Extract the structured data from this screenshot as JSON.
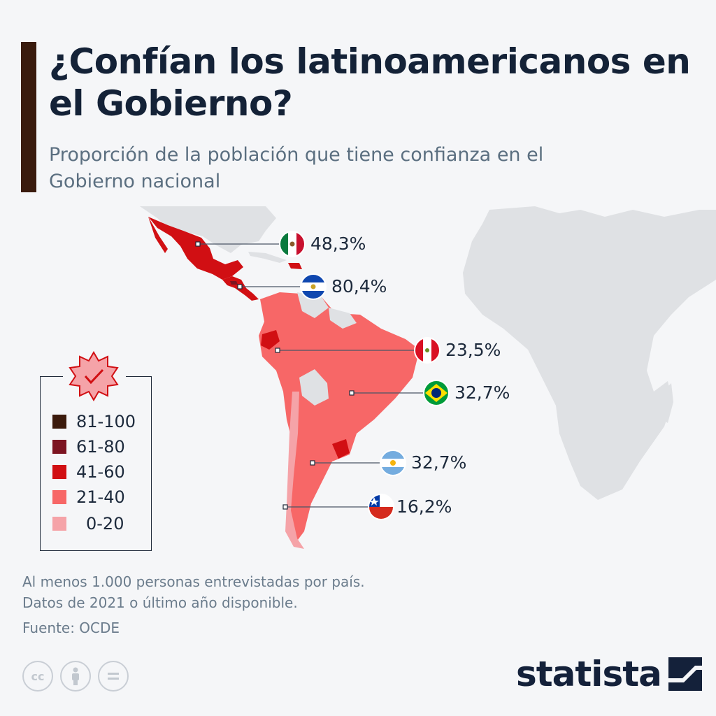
{
  "header": {
    "title": "¿Confían los latinoamericanos en el Gobierno?",
    "subtitle": "Proporción de la población que tiene confianza en el Gobierno nacional"
  },
  "countries": [
    {
      "flag": "mexico-flag-icon",
      "value": "48,3%",
      "pct": 48.3,
      "bin": "41-60"
    },
    {
      "flag": "el-salvador-flag-icon",
      "value": "80,4%",
      "pct": 80.4,
      "bin": "61-80"
    },
    {
      "flag": "peru-flag-icon",
      "value": "23,5%",
      "pct": 23.5,
      "bin": "21-40"
    },
    {
      "flag": "brazil-flag-icon",
      "value": "32,7%",
      "pct": 32.7,
      "bin": "21-40"
    },
    {
      "flag": "argentina-flag-icon",
      "value": "32,7%",
      "pct": 32.7,
      "bin": "21-40"
    },
    {
      "flag": "chile-flag-icon",
      "value": "16,2%",
      "pct": 16.2,
      "bin": "0-20"
    }
  ],
  "legend": {
    "icon": "check-badge-icon",
    "items": [
      {
        "label": "81-100",
        "color": "#3b1a0c"
      },
      {
        "label": "61-80",
        "color": "#7c1421"
      },
      {
        "label": "41-60",
        "color": "#d10f13"
      },
      {
        "label": "21-40",
        "color": "#f76767"
      },
      {
        "label": "0-20",
        "color": "#f5a3a8"
      }
    ]
  },
  "colors": {
    "background": "#f5f6f8",
    "land_no_data": "#dfe1e4",
    "accent_bar": "#3a1b0d",
    "title": "#142237"
  },
  "footer": {
    "note1": "Al menos 1.000 personas entrevistadas por país.",
    "note2": "Datos de 2021 o último año disponible.",
    "source": "Fuente: OCDE",
    "license_icons": [
      "cc-icon",
      "by-icon",
      "nd-icon"
    ],
    "brand": "statista"
  }
}
